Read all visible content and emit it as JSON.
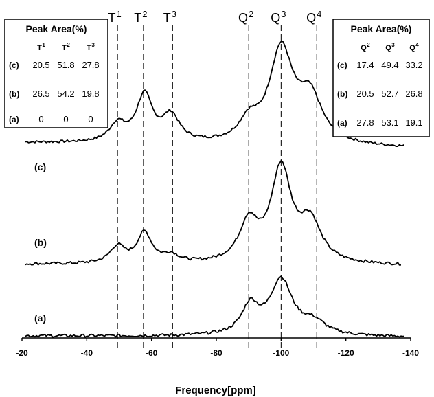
{
  "chart_data": {
    "type": "line",
    "xlabel": "Frequency[ppm]",
    "xlim": [
      -20,
      -140
    ],
    "x_ticks": [
      "-20",
      "-40",
      "-60",
      "-80",
      "-100",
      "-120",
      "-140"
    ],
    "x_tick_values": [
      -20,
      -40,
      -60,
      -80,
      -100,
      -120,
      -140
    ],
    "grid": false,
    "reference_lines": [
      {
        "base": "T",
        "sup": "1",
        "x": -49.5
      },
      {
        "base": "T",
        "sup": "2",
        "x": -57.5
      },
      {
        "base": "T",
        "sup": "3",
        "x": -66.5
      },
      {
        "base": "Q",
        "sup": "2",
        "x": -90
      },
      {
        "base": "Q",
        "sup": "3",
        "x": -100
      },
      {
        "base": "Q",
        "sup": "4",
        "x": -111
      }
    ],
    "series": [
      {
        "label": "(c)",
        "baseline_left": 0.92,
        "baseline_right": 0.86,
        "noise": 0.045,
        "peaks": [
          {
            "x": -49.5,
            "h": 0.65,
            "w": 3.0
          },
          {
            "x": -57.8,
            "h": 1.7,
            "w": 3.0
          },
          {
            "x": -66.0,
            "h": 0.95,
            "w": 3.2
          },
          {
            "x": -90.0,
            "h": 0.7,
            "w": 3.5
          },
          {
            "x": -100.0,
            "h": 3.4,
            "w": 4.5
          },
          {
            "x": -109.0,
            "h": 1.6,
            "w": 4.5
          }
        ]
      },
      {
        "label": "(b)",
        "baseline_left": 0.72,
        "baseline_right": 0.68,
        "noise": 0.045,
        "peaks": [
          {
            "x": -49.5,
            "h": 0.55,
            "w": 2.8
          },
          {
            "x": -57.8,
            "h": 1.0,
            "w": 2.8
          },
          {
            "x": -66.0,
            "h": 0.25,
            "w": 3.0
          },
          {
            "x": -90.0,
            "h": 1.3,
            "w": 3.5
          },
          {
            "x": -100.0,
            "h": 3.1,
            "w": 3.8
          },
          {
            "x": -109.0,
            "h": 1.3,
            "w": 4.0
          }
        ]
      },
      {
        "label": "(a)",
        "baseline_left": 0.39,
        "baseline_right": 0.37,
        "noise": 0.04,
        "peaks": [
          {
            "x": -90.5,
            "h": 0.8,
            "w": 3.2
          },
          {
            "x": -100.0,
            "h": 1.55,
            "w": 4.2
          },
          {
            "x": -110.0,
            "h": 0.35,
            "w": 4.5
          }
        ]
      }
    ]
  },
  "left_box": {
    "title": "Peak Area(%)",
    "columns": [
      {
        "base": "T",
        "sup": "1"
      },
      {
        "base": "T",
        "sup": "2"
      },
      {
        "base": "T",
        "sup": "3"
      }
    ],
    "rows": [
      {
        "label": "(c)",
        "values": [
          "20.5",
          "51.8",
          "27.8"
        ]
      },
      {
        "label": "(b)",
        "values": [
          "26.5",
          "54.2",
          "19.8"
        ]
      },
      {
        "label": "(a)",
        "values": [
          "0",
          "0",
          "0"
        ]
      }
    ]
  },
  "right_box": {
    "title": "Peak Area(%)",
    "columns": [
      {
        "base": "Q",
        "sup": "2"
      },
      {
        "base": "Q",
        "sup": "3"
      },
      {
        "base": "Q",
        "sup": "4"
      }
    ],
    "rows": [
      {
        "label": "(c)",
        "values": [
          "17.4",
          "49.4",
          "33.2"
        ]
      },
      {
        "label": "(b)",
        "values": [
          "20.5",
          "52.7",
          "26.8"
        ]
      },
      {
        "label": "(a)",
        "values": [
          "27.8",
          "53.1",
          "19.1"
        ]
      }
    ]
  }
}
